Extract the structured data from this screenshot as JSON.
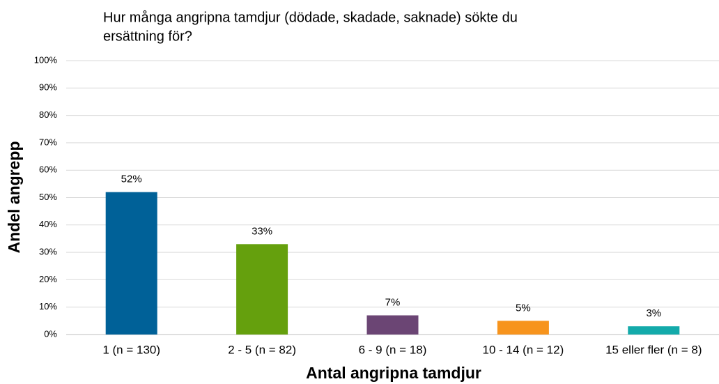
{
  "chart_data": {
    "type": "bar",
    "title": [
      "Hur många angripna tamdjur (dödade, skadade, saknade) sökte du",
      "ersättning för?"
    ],
    "y_label": "Andel angrepp",
    "x_label": "Antal angripna tamdjur",
    "categories": [
      "1 (n = 130)",
      "2 - 5 (n = 82)",
      "6 - 9 (n = 18)",
      "10 - 14 (n = 12)",
      "15 eller fler (n = 8)"
    ],
    "values": [
      52,
      33,
      7,
      5,
      3
    ],
    "value_labels": [
      "52%",
      "33%",
      "7%",
      "5%",
      "3%"
    ],
    "colors": [
      "#006198",
      "#65a00d",
      "#6b4574",
      "#f7941d",
      "#13aaaa"
    ],
    "ylim": [
      0,
      100
    ],
    "yticks": [
      {
        "value": 0,
        "label": "0%"
      },
      {
        "value": 10,
        "label": "10%"
      },
      {
        "value": 20,
        "label": "20%"
      },
      {
        "value": 30,
        "label": "30%"
      },
      {
        "value": 40,
        "label": "40%"
      },
      {
        "value": 50,
        "label": "50%"
      },
      {
        "value": 60,
        "label": "60%"
      },
      {
        "value": 70,
        "label": "70%"
      },
      {
        "value": 80,
        "label": "80%"
      },
      {
        "value": 90,
        "label": "90%"
      },
      {
        "value": 100,
        "label": "100%"
      }
    ],
    "grid": true
  }
}
